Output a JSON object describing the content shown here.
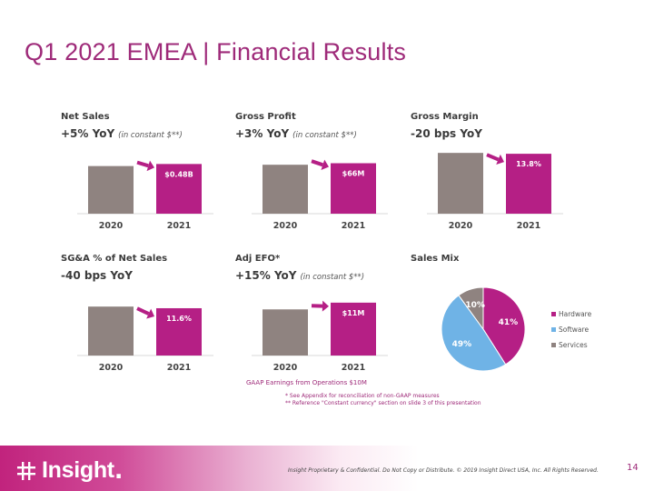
{
  "title": "Q1 2021 EMEA | Financial Results",
  "colors": {
    "accent": "#9e2a79",
    "bar_2021": "#b51f85",
    "bar_2020": "#8f8380",
    "hardware": "#b51f85",
    "software": "#6fb3e6",
    "services": "#8f8380"
  },
  "panels": {
    "net_sales": {
      "heading": "Net Sales",
      "metric": "+5% YoY",
      "note": "(in constant $**)"
    },
    "gross_profit": {
      "heading": "Gross Profit",
      "metric": "+3% YoY",
      "note": "(in constant $**)"
    },
    "gross_margin": {
      "heading": "Gross Margin",
      "metric": "-20 bps YoY",
      "note": ""
    },
    "sga": {
      "heading": "SG&A % of Net Sales",
      "metric": "-40 bps YoY",
      "note": ""
    },
    "adj_efo": {
      "heading": "Adj EFO*",
      "metric": "+15% YoY",
      "note": "(in constant $**)"
    },
    "sales_mix": {
      "heading": "Sales Mix"
    }
  },
  "chart_data": [
    {
      "type": "bar",
      "id": "net_sales",
      "categories": [
        "2020",
        "2021"
      ],
      "values": [
        0.46,
        0.48
      ],
      "labels": [
        "",
        "$0.48B"
      ],
      "arrow": "up",
      "ylim": [
        0,
        0.65
      ]
    },
    {
      "type": "bar",
      "id": "gross_profit",
      "categories": [
        "2020",
        "2021"
      ],
      "values": [
        64,
        66
      ],
      "labels": [
        "",
        "$66M"
      ],
      "arrow": "up",
      "ylim": [
        0,
        88
      ]
    },
    {
      "type": "bar",
      "id": "gross_margin",
      "categories": [
        "2020",
        "2021"
      ],
      "values": [
        14.0,
        13.8
      ],
      "labels": [
        "",
        "13.8%"
      ],
      "arrow": "down",
      "ylim": [
        0,
        15.5
      ]
    },
    {
      "type": "bar",
      "id": "sga",
      "categories": [
        "2020",
        "2021"
      ],
      "values": [
        12.0,
        11.6
      ],
      "labels": [
        "",
        "11.6%"
      ],
      "arrow": "down",
      "ylim": [
        0,
        16.5
      ]
    },
    {
      "type": "bar",
      "id": "adj_efo",
      "categories": [
        "2020",
        "2021"
      ],
      "values": [
        9.6,
        11
      ],
      "labels": [
        "",
        "$11M"
      ],
      "arrow": "up",
      "ylim": [
        0,
        14
      ]
    },
    {
      "type": "pie",
      "id": "sales_mix",
      "categories": [
        "Hardware",
        "Software",
        "Services"
      ],
      "values": [
        41,
        49,
        10
      ],
      "labels": [
        "41%",
        "49%",
        "10%"
      ]
    }
  ],
  "gaap_note": "GAAP Earnings from Operations $10M",
  "footnotes": [
    "*   See Appendix for reconciliation of non-GAAP measures",
    "** Reference \"Constant currency\" section on slide 3 of this presentation"
  ],
  "footer": {
    "logo_text": "Insight",
    "legal": "Insight Proprietary & Confidential. Do Not Copy or Distribute. © 2019 Insight Direct USA, Inc. All Rights Reserved.",
    "page_number": "14"
  }
}
